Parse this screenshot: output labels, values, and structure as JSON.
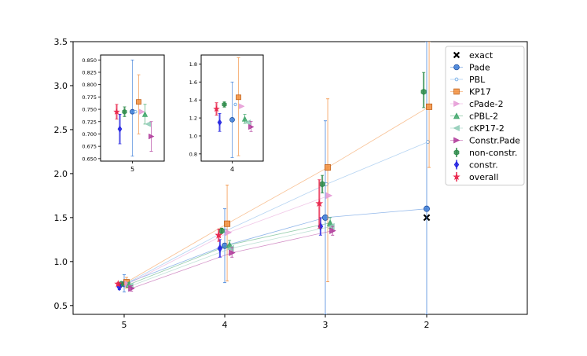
{
  "chart_data": {
    "type": "scatter",
    "x_categories": [
      "5",
      "4",
      "3",
      "2"
    ],
    "y_ticks": [
      "0.5",
      "1.0",
      "1.5",
      "2.0",
      "2.5",
      "3.0",
      "3.5"
    ],
    "ylim": [
      0.4,
      3.5
    ],
    "legend_position": "top-right",
    "series": [
      {
        "name": "exact",
        "color": "#000000",
        "marker": "x",
        "line": false,
        "offset": 0.0,
        "points": [
          {
            "x": "2",
            "y": 1.5
          }
        ]
      },
      {
        "name": "Pade",
        "color": "#3b7dd8",
        "marker": "circle",
        "line": true,
        "offset": 0.0,
        "points": [
          {
            "x": "5",
            "y": 0.745,
            "lo": 0.655,
            "hi": 0.85
          },
          {
            "x": "4",
            "y": 1.18,
            "lo": 0.76,
            "hi": 1.6
          },
          {
            "x": "3",
            "y": 1.5,
            "lo": 0.4,
            "hi": 2.6
          },
          {
            "x": "2",
            "y": 1.6,
            "lo": 0.4,
            "hi": 3.5
          }
        ]
      },
      {
        "name": "PBL",
        "color": "#7ab0e8",
        "marker": "smallcircle",
        "line": true,
        "offset": 0.02,
        "points": [
          {
            "x": "5",
            "y": 0.745
          },
          {
            "x": "4",
            "y": 1.35
          },
          {
            "x": "3",
            "y": 1.88
          },
          {
            "x": "2",
            "y": 2.36
          }
        ]
      },
      {
        "name": "KP17",
        "color": "#f28e3c",
        "marker": "square",
        "line": true,
        "offset": 0.04,
        "points": [
          {
            "x": "5",
            "y": 0.765,
            "lo": 0.7,
            "hi": 0.82
          },
          {
            "x": "4",
            "y": 1.43,
            "lo": 0.78,
            "hi": 1.87
          },
          {
            "x": "3",
            "y": 2.07,
            "lo": 0.77,
            "hi": 2.85
          },
          {
            "x": "2",
            "y": 2.76,
            "lo": 2.07,
            "hi": 3.5
          }
        ]
      },
      {
        "name": "cPade-2",
        "color": "#e59ad6",
        "marker": "triangle-right",
        "line": true,
        "offset": 0.06,
        "points": [
          {
            "x": "5",
            "y": 0.745
          },
          {
            "x": "4",
            "y": 1.33
          },
          {
            "x": "3",
            "y": 1.75
          }
        ]
      },
      {
        "name": "cPBL-2",
        "color": "#3fa66a",
        "marker": "triangle-up",
        "line": true,
        "offset": 0.08,
        "points": [
          {
            "x": "5",
            "y": 0.74,
            "lo": 0.72,
            "hi": 0.76
          },
          {
            "x": "4",
            "y": 1.19,
            "lo": 1.14,
            "hi": 1.24
          },
          {
            "x": "3",
            "y": 1.44,
            "lo": 1.38,
            "hi": 1.5
          }
        ]
      },
      {
        "name": "cKP17-2",
        "color": "#8ecbb6",
        "marker": "triangle-left",
        "line": true,
        "offset": 0.1,
        "points": [
          {
            "x": "5",
            "y": 0.72
          },
          {
            "x": "4",
            "y": 1.15
          },
          {
            "x": "3",
            "y": 1.4
          }
        ]
      },
      {
        "name": "Constr.Pade",
        "color": "#b03a9a",
        "marker": "triangle-right",
        "line": true,
        "offset": 0.12,
        "points": [
          {
            "x": "5",
            "y": 0.695,
            "lo": 0.665,
            "hi": 0.725
          },
          {
            "x": "4",
            "y": 1.1,
            "lo": 1.05,
            "hi": 1.16
          },
          {
            "x": "3",
            "y": 1.35,
            "lo": 1.3,
            "hi": 1.4
          }
        ]
      },
      {
        "name": "non-constr.",
        "color": "#2e8b4a",
        "marker": "hexagon",
        "line": false,
        "offset": -0.05,
        "points": [
          {
            "x": "5",
            "y": 0.745,
            "lo": 0.735,
            "hi": 0.755
          },
          {
            "x": "4",
            "y": 1.35,
            "lo": 1.32,
            "hi": 1.38
          },
          {
            "x": "3",
            "y": 1.88,
            "lo": 1.78,
            "hi": 1.98
          },
          {
            "x": "2",
            "y": 2.93,
            "lo": 2.75,
            "hi": 3.15
          }
        ]
      },
      {
        "name": "constr.",
        "color": "#2323e0",
        "marker": "diamond",
        "line": false,
        "offset": -0.08,
        "points": [
          {
            "x": "5",
            "y": 0.71,
            "lo": 0.68,
            "hi": 0.74
          },
          {
            "x": "4",
            "y": 1.15,
            "lo": 1.05,
            "hi": 1.25
          },
          {
            "x": "3",
            "y": 1.4,
            "lo": 1.3,
            "hi": 1.5
          }
        ]
      },
      {
        "name": "overall",
        "color": "#e8234a",
        "marker": "star",
        "line": false,
        "offset": -0.1,
        "points": [
          {
            "x": "5",
            "y": 0.745,
            "lo": 0.73,
            "hi": 0.76
          },
          {
            "x": "4",
            "y": 1.3,
            "lo": 1.23,
            "hi": 1.37
          },
          {
            "x": "3",
            "y": 1.66,
            "lo": 1.38,
            "hi": 1.93
          }
        ]
      }
    ],
    "insets": [
      {
        "x_category": "5",
        "y_ticks": [
          "0.650",
          "0.675",
          "0.700",
          "0.725",
          "0.750",
          "0.775",
          "0.800",
          "0.825",
          "0.850"
        ],
        "ylim": [
          0.645,
          0.86
        ]
      },
      {
        "x_category": "4",
        "y_ticks": [
          "0.8",
          "1.0",
          "1.2",
          "1.4",
          "1.6",
          "1.8"
        ],
        "ylim": [
          0.72,
          1.9
        ]
      }
    ]
  }
}
